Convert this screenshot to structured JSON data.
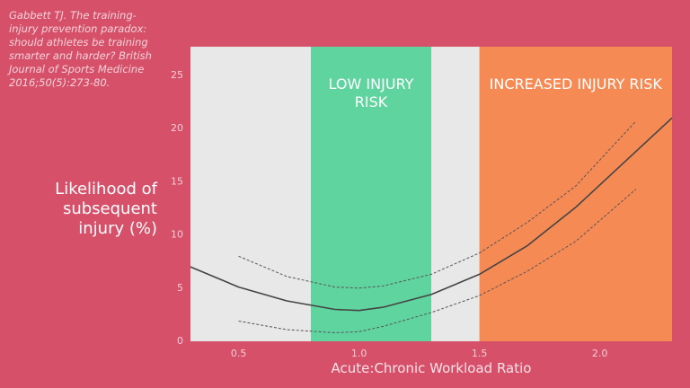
{
  "chart_data": {
    "type": "line",
    "citation": "Gabbett TJ. The training-injury prevention paradox: should athletes be training smarter and harder? British Journal of Sports Medicine 2016;50(5):273-80.",
    "x_label": "Acute:Chronic Workload Ratio",
    "y_label": "Likelihood of subsequent injury (%)",
    "xlim": [
      0.3,
      2.3
    ],
    "ylim": [
      0,
      27.7
    ],
    "xticks": [
      0.5,
      {
        "value": 1,
        "label": "1.0"
      },
      1.5,
      {
        "value": 2,
        "label": "2.0"
      }
    ],
    "yticks": [
      0,
      5,
      10,
      15,
      20,
      25
    ],
    "plot_background": "#e8e8e8",
    "zones": [
      {
        "label": "LOW INJURY RISK",
        "start": 0.8,
        "end": 1.3,
        "color": "#5fd49f"
      },
      {
        "label": "INCREASED INJURY RISK",
        "start": 1.5,
        "end": 2.3,
        "color": "#f58a55"
      }
    ],
    "series": [
      {
        "color": "#444444",
        "dash": false,
        "x": [
          0.3,
          0.5,
          0.7,
          0.9,
          1.0,
          1.1,
          1.3,
          1.5,
          1.7,
          1.9,
          2.1,
          2.3
        ],
        "values": [
          7,
          5.1,
          3.8,
          3.0,
          2.9,
          3.2,
          4.4,
          6.3,
          9.0,
          12.6,
          16.8,
          21
        ]
      },
      {
        "color": "#555555",
        "dash": true,
        "x": [
          0.5,
          0.7,
          0.9,
          1.0,
          1.1,
          1.3,
          1.5,
          1.7,
          1.9,
          2.15
        ],
        "values": [
          8.0,
          6.1,
          5.1,
          5.0,
          5.2,
          6.3,
          8.3,
          11.2,
          14.6,
          20.7
        ]
      },
      {
        "color": "#555555",
        "dash": true,
        "x": [
          0.5,
          0.7,
          0.9,
          1.0,
          1.1,
          1.3,
          1.5,
          1.7,
          1.9,
          2.15
        ],
        "values": [
          1.9,
          1.1,
          0.8,
          0.9,
          1.4,
          2.7,
          4.3,
          6.6,
          9.4,
          14.3
        ]
      }
    ]
  }
}
